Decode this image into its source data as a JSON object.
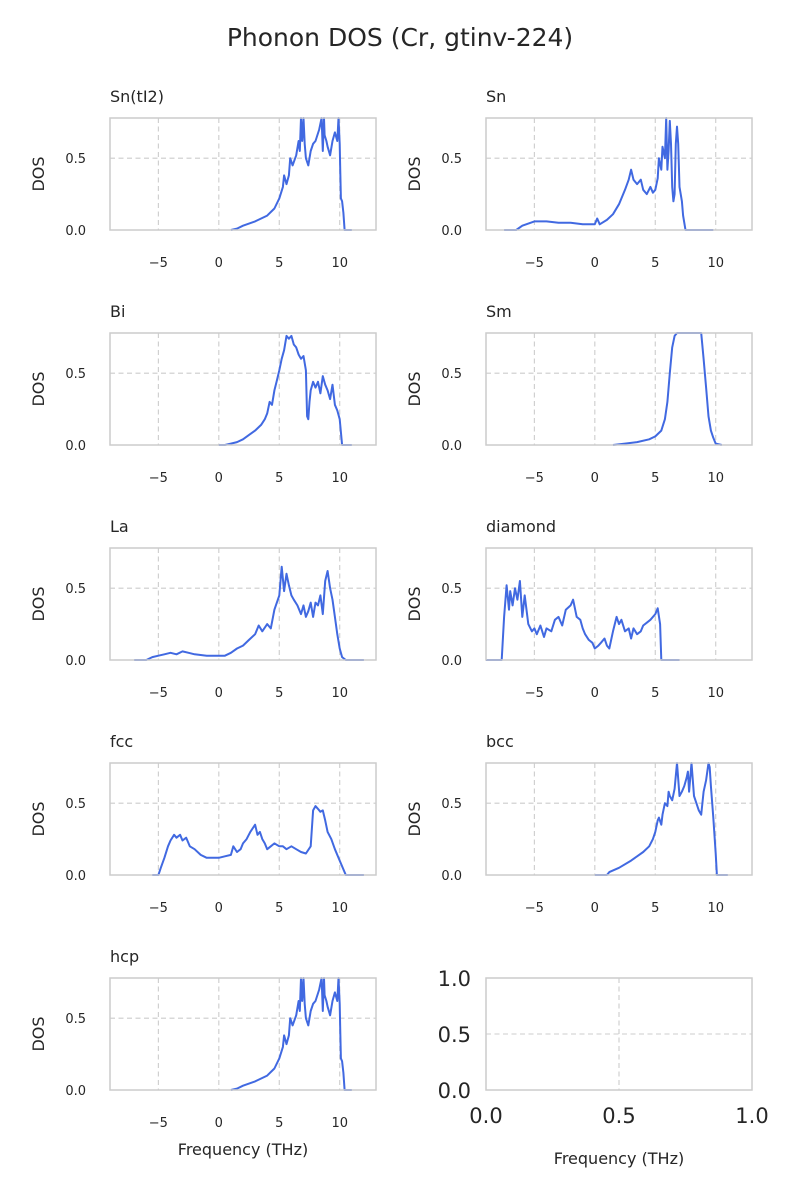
{
  "figure": {
    "title": "Phonon DOS (Cr, gtinv-224)",
    "line_color": "#4169e1"
  },
  "chart_data": [
    {
      "type": "line",
      "title": "Sn(tI2)",
      "xlabel": "",
      "ylabel": "DOS",
      "xlim": [
        -9,
        13
      ],
      "ylim": [
        0,
        0.78
      ],
      "xticks": [
        -5,
        0,
        5,
        10
      ],
      "yticks": [
        0.0,
        0.5
      ],
      "grid": true,
      "series": [
        {
          "x": [
            1.0,
            1.5,
            2.0,
            3.0,
            4.0,
            4.6,
            5.0,
            5.3,
            5.4,
            5.6,
            5.8,
            5.9,
            6.1,
            6.4,
            6.6,
            6.7,
            6.8,
            6.9,
            7.0,
            7.1,
            7.2,
            7.4,
            7.6,
            7.8,
            8.0,
            8.3,
            8.5,
            8.6,
            8.7,
            8.75,
            8.9,
            9.0,
            9.2,
            9.4,
            9.6,
            9.8,
            9.9,
            10.0,
            10.05,
            10.1,
            10.2,
            10.3,
            10.4,
            11.0
          ],
          "y": [
            0.0,
            0.01,
            0.03,
            0.06,
            0.1,
            0.15,
            0.22,
            0.3,
            0.38,
            0.32,
            0.38,
            0.5,
            0.45,
            0.52,
            0.62,
            0.55,
            0.78,
            0.62,
            0.78,
            0.6,
            0.5,
            0.45,
            0.55,
            0.6,
            0.62,
            0.7,
            0.78,
            0.55,
            0.78,
            0.66,
            0.62,
            0.58,
            0.52,
            0.62,
            0.68,
            0.62,
            0.78,
            0.6,
            0.4,
            0.22,
            0.2,
            0.12,
            0.0,
            0.0
          ]
        }
      ]
    },
    {
      "type": "line",
      "title": "Sn",
      "xlabel": "",
      "ylabel": "DOS",
      "xlim": [
        -9,
        13
      ],
      "ylim": [
        0,
        0.78
      ],
      "xticks": [
        -5,
        0,
        5,
        10
      ],
      "yticks": [
        0.0,
        0.5
      ],
      "grid": true,
      "series": [
        {
          "x": [
            -7.5,
            -6.5,
            -6.0,
            -5.0,
            -4.0,
            -3.0,
            -2.0,
            -1.0,
            0.0,
            0.2,
            0.4,
            1.0,
            1.5,
            2.0,
            2.5,
            2.8,
            3.0,
            3.2,
            3.5,
            3.8,
            4.0,
            4.3,
            4.6,
            4.8,
            5.0,
            5.2,
            5.3,
            5.5,
            5.6,
            5.8,
            5.9,
            6.0,
            6.1,
            6.2,
            6.3,
            6.4,
            6.5,
            6.6,
            6.7,
            6.8,
            6.9,
            7.0,
            7.1,
            7.2,
            7.3,
            7.4,
            7.5,
            7.7,
            8.0,
            8.5,
            9.0,
            9.5,
            9.8
          ],
          "y": [
            0.0,
            0.0,
            0.03,
            0.06,
            0.06,
            0.05,
            0.05,
            0.04,
            0.04,
            0.08,
            0.04,
            0.07,
            0.11,
            0.18,
            0.28,
            0.35,
            0.42,
            0.35,
            0.32,
            0.35,
            0.28,
            0.25,
            0.3,
            0.26,
            0.28,
            0.36,
            0.5,
            0.42,
            0.58,
            0.5,
            0.78,
            0.42,
            0.55,
            0.76,
            0.6,
            0.3,
            0.2,
            0.25,
            0.6,
            0.72,
            0.6,
            0.3,
            0.25,
            0.2,
            0.1,
            0.05,
            0.0,
            0.0,
            0.0,
            0.0,
            0.0,
            0.0,
            0.0
          ]
        }
      ]
    },
    {
      "type": "line",
      "title": "Bi",
      "xlabel": "",
      "ylabel": "DOS",
      "xlim": [
        -9,
        13
      ],
      "ylim": [
        0,
        0.78
      ],
      "xticks": [
        -5,
        0,
        5,
        10
      ],
      "yticks": [
        0.0,
        0.5
      ],
      "grid": true,
      "series": [
        {
          "x": [
            0.0,
            0.5,
            1.0,
            1.5,
            2.0,
            2.5,
            3.0,
            3.5,
            3.8,
            4.0,
            4.2,
            4.4,
            4.6,
            4.8,
            5.0,
            5.2,
            5.4,
            5.6,
            5.8,
            6.0,
            6.2,
            6.4,
            6.6,
            6.8,
            7.0,
            7.2,
            7.3,
            7.4,
            7.5,
            7.6,
            7.8,
            8.0,
            8.2,
            8.4,
            8.6,
            8.8,
            9.0,
            9.2,
            9.4,
            9.6,
            9.8,
            10.0,
            10.2,
            10.5,
            11.0
          ],
          "y": [
            0.0,
            0.0,
            0.01,
            0.02,
            0.04,
            0.07,
            0.1,
            0.14,
            0.18,
            0.22,
            0.3,
            0.28,
            0.38,
            0.45,
            0.52,
            0.6,
            0.66,
            0.76,
            0.74,
            0.76,
            0.7,
            0.68,
            0.63,
            0.6,
            0.62,
            0.52,
            0.2,
            0.18,
            0.3,
            0.38,
            0.44,
            0.4,
            0.44,
            0.36,
            0.48,
            0.42,
            0.38,
            0.32,
            0.42,
            0.28,
            0.24,
            0.18,
            0.0,
            0.0,
            0.0
          ]
        }
      ]
    },
    {
      "type": "line",
      "title": "Sm",
      "xlabel": "",
      "ylabel": "DOS",
      "xlim": [
        -9,
        13
      ],
      "ylim": [
        0,
        0.78
      ],
      "xticks": [
        -5,
        0,
        5,
        10
      ],
      "yticks": [
        0.0,
        0.5
      ],
      "grid": true,
      "series": [
        {
          "x": [
            1.5,
            2.5,
            3.5,
            4.5,
            5.0,
            5.5,
            5.8,
            6.0,
            6.2,
            6.4,
            6.6,
            6.8,
            7.0,
            7.2,
            7.5,
            8.0,
            8.5,
            8.8,
            9.0,
            9.2,
            9.4,
            9.6,
            9.8,
            10.0,
            10.5
          ],
          "y": [
            0.0,
            0.01,
            0.02,
            0.04,
            0.06,
            0.1,
            0.18,
            0.3,
            0.5,
            0.68,
            0.76,
            0.78,
            0.78,
            0.78,
            0.78,
            0.78,
            0.78,
            0.78,
            0.6,
            0.4,
            0.2,
            0.1,
            0.05,
            0.01,
            0.0
          ]
        }
      ]
    },
    {
      "type": "line",
      "title": "La",
      "xlabel": "",
      "ylabel": "DOS",
      "xlim": [
        -9,
        13
      ],
      "ylim": [
        0,
        0.78
      ],
      "xticks": [
        -5,
        0,
        5,
        10
      ],
      "yticks": [
        0.0,
        0.5
      ],
      "grid": true,
      "series": [
        {
          "x": [
            -7.0,
            -6.0,
            -5.5,
            -5.0,
            -4.5,
            -4.0,
            -3.5,
            -3.0,
            -2.5,
            -2.0,
            -1.0,
            0.0,
            0.5,
            1.0,
            1.5,
            2.0,
            2.5,
            3.0,
            3.3,
            3.6,
            4.0,
            4.3,
            4.6,
            5.0,
            5.2,
            5.4,
            5.6,
            5.8,
            6.0,
            6.2,
            6.5,
            6.8,
            7.0,
            7.2,
            7.4,
            7.6,
            7.8,
            8.0,
            8.2,
            8.4,
            8.6,
            8.8,
            9.0,
            9.2,
            9.4,
            9.6,
            9.8,
            10.0,
            10.2,
            10.5,
            11.0,
            12.0
          ],
          "y": [
            0.0,
            0.0,
            0.02,
            0.03,
            0.04,
            0.05,
            0.04,
            0.06,
            0.05,
            0.04,
            0.03,
            0.03,
            0.03,
            0.05,
            0.08,
            0.1,
            0.14,
            0.18,
            0.24,
            0.2,
            0.25,
            0.22,
            0.35,
            0.45,
            0.65,
            0.48,
            0.6,
            0.52,
            0.45,
            0.42,
            0.38,
            0.32,
            0.38,
            0.3,
            0.34,
            0.4,
            0.3,
            0.4,
            0.38,
            0.45,
            0.32,
            0.55,
            0.62,
            0.5,
            0.42,
            0.3,
            0.18,
            0.08,
            0.02,
            0.0,
            0.0,
            0.0
          ]
        }
      ]
    },
    {
      "type": "line",
      "title": "diamond",
      "xlabel": "",
      "ylabel": "DOS",
      "xlim": [
        -9,
        13
      ],
      "ylim": [
        0,
        0.78
      ],
      "xticks": [
        -5,
        0,
        5,
        10
      ],
      "yticks": [
        0.0,
        0.5
      ],
      "grid": true,
      "series": [
        {
          "x": [
            -9.0,
            -8.5,
            -8.0,
            -7.7,
            -7.5,
            -7.3,
            -7.1,
            -7.0,
            -6.8,
            -6.6,
            -6.4,
            -6.2,
            -6.0,
            -5.8,
            -5.5,
            -5.2,
            -5.0,
            -4.8,
            -4.5,
            -4.2,
            -4.0,
            -3.6,
            -3.3,
            -3.0,
            -2.7,
            -2.4,
            -2.0,
            -1.8,
            -1.5,
            -1.2,
            -1.0,
            -0.8,
            -0.5,
            -0.2,
            0.0,
            0.3,
            0.5,
            0.8,
            1.0,
            1.2,
            1.5,
            1.8,
            2.0,
            2.2,
            2.5,
            2.8,
            3.0,
            3.2,
            3.5,
            3.8,
            4.0,
            4.3,
            4.6,
            5.0,
            5.2,
            5.4,
            5.5,
            5.7,
            6.0,
            7.0
          ],
          "y": [
            0.0,
            0.0,
            0.0,
            0.0,
            0.3,
            0.52,
            0.35,
            0.48,
            0.38,
            0.5,
            0.42,
            0.55,
            0.3,
            0.45,
            0.25,
            0.2,
            0.22,
            0.18,
            0.24,
            0.16,
            0.22,
            0.2,
            0.28,
            0.3,
            0.24,
            0.35,
            0.38,
            0.42,
            0.3,
            0.28,
            0.22,
            0.18,
            0.14,
            0.12,
            0.08,
            0.1,
            0.12,
            0.15,
            0.1,
            0.08,
            0.2,
            0.3,
            0.25,
            0.28,
            0.2,
            0.22,
            0.15,
            0.22,
            0.18,
            0.2,
            0.24,
            0.26,
            0.28,
            0.32,
            0.36,
            0.25,
            0.0,
            0.0,
            0.0,
            0.0
          ]
        }
      ]
    },
    {
      "type": "line",
      "title": "fcc",
      "xlabel": "",
      "ylabel": "DOS",
      "xlim": [
        -9,
        13
      ],
      "ylim": [
        0,
        0.78
      ],
      "xticks": [
        -5,
        0,
        5,
        10
      ],
      "yticks": [
        0.0,
        0.5
      ],
      "grid": true,
      "series": [
        {
          "x": [
            -5.5,
            -5.0,
            -4.8,
            -4.5,
            -4.2,
            -4.0,
            -3.7,
            -3.5,
            -3.2,
            -3.0,
            -2.7,
            -2.4,
            -2.0,
            -1.5,
            -1.0,
            -0.5,
            0.0,
            0.5,
            1.0,
            1.2,
            1.5,
            1.8,
            2.0,
            2.3,
            2.6,
            3.0,
            3.2,
            3.4,
            3.6,
            3.8,
            4.0,
            4.3,
            4.6,
            5.0,
            5.3,
            5.6,
            6.0,
            6.4,
            6.8,
            7.2,
            7.6,
            7.8,
            8.0,
            8.2,
            8.4,
            8.6,
            8.8,
            9.0,
            9.3,
            9.6,
            10.0,
            10.5,
            11.0,
            12.0
          ],
          "y": [
            0.0,
            0.0,
            0.05,
            0.12,
            0.2,
            0.24,
            0.28,
            0.26,
            0.28,
            0.24,
            0.26,
            0.2,
            0.18,
            0.14,
            0.12,
            0.12,
            0.12,
            0.13,
            0.14,
            0.2,
            0.16,
            0.18,
            0.22,
            0.25,
            0.3,
            0.35,
            0.28,
            0.3,
            0.25,
            0.22,
            0.18,
            0.2,
            0.22,
            0.2,
            0.2,
            0.18,
            0.2,
            0.18,
            0.16,
            0.15,
            0.2,
            0.45,
            0.48,
            0.46,
            0.44,
            0.45,
            0.38,
            0.3,
            0.25,
            0.18,
            0.1,
            0.0,
            0.0,
            0.0
          ]
        }
      ]
    },
    {
      "type": "line",
      "title": "bcc",
      "xlabel": "",
      "ylabel": "DOS",
      "xlim": [
        -9,
        13
      ],
      "ylim": [
        0,
        0.78
      ],
      "xticks": [
        -5,
        0,
        5,
        10
      ],
      "yticks": [
        0.0,
        0.5
      ],
      "grid": true,
      "series": [
        {
          "x": [
            0.0,
            1.0,
            1.2,
            2.0,
            3.0,
            4.0,
            4.5,
            4.8,
            5.0,
            5.2,
            5.3,
            5.5,
            5.6,
            5.8,
            6.0,
            6.1,
            6.2,
            6.4,
            6.6,
            6.8,
            7.0,
            7.2,
            7.4,
            7.6,
            7.7,
            7.8,
            8.0,
            8.2,
            8.4,
            8.6,
            8.8,
            9.0,
            9.2,
            9.4,
            9.5,
            9.6,
            9.8,
            10.0,
            10.1,
            10.2,
            10.4,
            11.0
          ],
          "y": [
            0.0,
            0.0,
            0.02,
            0.05,
            0.1,
            0.16,
            0.2,
            0.25,
            0.3,
            0.38,
            0.4,
            0.35,
            0.42,
            0.5,
            0.48,
            0.58,
            0.55,
            0.52,
            0.6,
            0.78,
            0.55,
            0.58,
            0.62,
            0.68,
            0.72,
            0.58,
            0.78,
            0.55,
            0.5,
            0.45,
            0.42,
            0.58,
            0.66,
            0.78,
            0.75,
            0.62,
            0.4,
            0.15,
            0.0,
            0.0,
            0.0,
            0.0
          ]
        }
      ]
    },
    {
      "type": "line",
      "title": "hcp",
      "xlabel": "Frequency (THz)",
      "ylabel": "DOS",
      "xlim": [
        -9,
        13
      ],
      "ylim": [
        0,
        0.78
      ],
      "xticks": [
        -5,
        0,
        5,
        10
      ],
      "yticks": [
        0.0,
        0.5
      ],
      "grid": true,
      "series": [
        {
          "x": [
            1.0,
            1.5,
            2.0,
            3.0,
            4.0,
            4.6,
            5.0,
            5.3,
            5.4,
            5.6,
            5.8,
            5.9,
            6.1,
            6.4,
            6.6,
            6.7,
            6.8,
            6.9,
            7.0,
            7.1,
            7.2,
            7.4,
            7.6,
            7.8,
            8.0,
            8.3,
            8.5,
            8.6,
            8.7,
            8.75,
            8.9,
            9.0,
            9.2,
            9.4,
            9.6,
            9.8,
            9.9,
            10.0,
            10.05,
            10.1,
            10.2,
            10.3,
            10.4,
            11.0
          ],
          "y": [
            0.0,
            0.01,
            0.03,
            0.06,
            0.1,
            0.15,
            0.22,
            0.3,
            0.38,
            0.32,
            0.38,
            0.5,
            0.45,
            0.52,
            0.62,
            0.55,
            0.78,
            0.62,
            0.78,
            0.6,
            0.5,
            0.45,
            0.55,
            0.6,
            0.62,
            0.7,
            0.78,
            0.55,
            0.78,
            0.66,
            0.62,
            0.58,
            0.52,
            0.62,
            0.68,
            0.62,
            0.78,
            0.6,
            0.4,
            0.22,
            0.2,
            0.12,
            0.0,
            0.0
          ]
        }
      ]
    },
    {
      "type": "line",
      "title": "",
      "xlabel": "Frequency (THz)",
      "ylabel": "",
      "xlim": [
        0,
        1
      ],
      "ylim": [
        0,
        1
      ],
      "xticks": [
        0.0,
        0.5,
        1.0
      ],
      "yticks": [
        0.0,
        0.5,
        1.0
      ],
      "grid": true,
      "series": []
    }
  ]
}
